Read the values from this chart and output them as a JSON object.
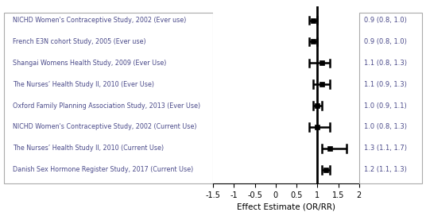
{
  "studies": [
    "NICHD Women's Contraceptive Study, 2002 (Ever use)",
    "French E3N cohort Study, 2005 (Ever use)",
    "Shangai Womens Health Study, 2009 (Ever Use)",
    "The Nurses’ Health Study II, 2010 (Ever Use)",
    "Oxford Family Planning Association Study, 2013 (Ever Use)",
    "NICHD Women's Contraceptive Study, 2002 (Current Use)",
    "The Nurses’ Health Study II, 2010 (Current Use)",
    "Danish Sex Hormone Register Study, 2017 (Current Use)"
  ],
  "estimates": [
    0.9,
    0.9,
    1.1,
    1.1,
    1.0,
    1.0,
    1.3,
    1.2
  ],
  "ci_low": [
    0.8,
    0.8,
    0.8,
    0.9,
    0.9,
    0.8,
    1.1,
    1.1
  ],
  "ci_high": [
    1.0,
    1.0,
    1.3,
    1.3,
    1.1,
    1.3,
    1.7,
    1.3
  ],
  "labels": [
    "0.9 (0.8, 1.0)",
    "0.9 (0.8, 1.0)",
    "1.1 (0.8, 1.3)",
    "1.1 (0.9, 1.3)",
    "1.0 (0.9, 1.1)",
    "1.0 (0.8, 1.3)",
    "1.3 (1.1, 1.7)",
    "1.2 (1.1, 1.3)"
  ],
  "xlim": [
    -1.5,
    2.0
  ],
  "xticks": [
    -1.5,
    -1.0,
    -0.5,
    0.0,
    0.5,
    1.0,
    1.5,
    2.0
  ],
  "xtick_labels": [
    "-1.5",
    "-1",
    "-0.5",
    "0",
    "0.5",
    "1",
    "1.5",
    "2"
  ],
  "xlabel": "Effect Estimate (OR/RR)",
  "vline_x": 1.0,
  "marker_color": "black",
  "line_color": "black",
  "background_color": "#ffffff",
  "text_color": "#4a4a8a",
  "box_edge_color": "#aaaaaa",
  "figsize": [
    5.36,
    2.72
  ],
  "dpi": 100
}
